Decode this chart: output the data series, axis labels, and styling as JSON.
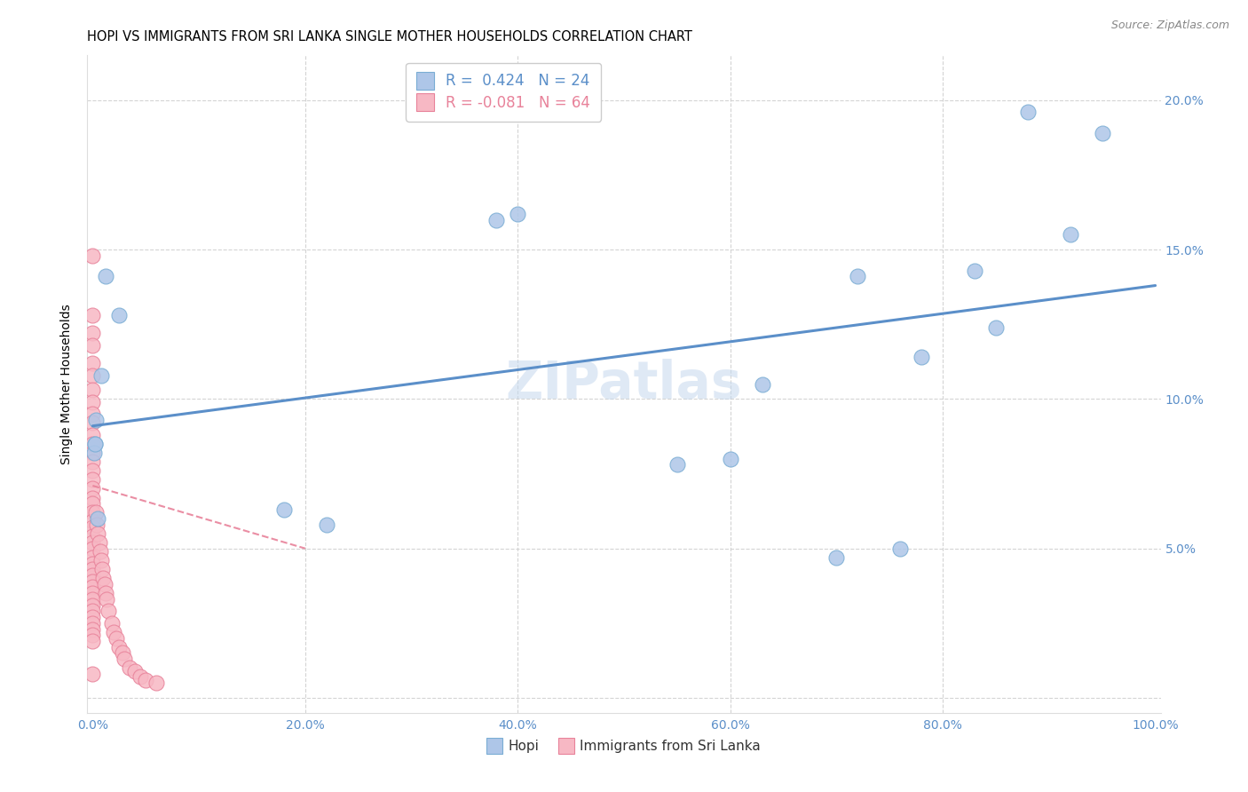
{
  "title": "HOPI VS IMMIGRANTS FROM SRI LANKA SINGLE MOTHER HOUSEHOLDS CORRELATION CHART",
  "source": "Source: ZipAtlas.com",
  "xlabel_hopi": "Hopi",
  "xlabel_srilanka": "Immigrants from Sri Lanka",
  "ylabel": "Single Mother Households",
  "watermark": "ZIPatlas",
  "hopi_R": 0.424,
  "hopi_N": 24,
  "srilanka_R": -0.081,
  "srilanka_N": 64,
  "hopi_color": "#aec6e8",
  "hopi_edge_color": "#7aadd4",
  "hopi_line_color": "#5b8fc9",
  "srilanka_color": "#f7b8c4",
  "srilanka_edge_color": "#e8829a",
  "srilanka_line_color": "#e8829a",
  "hopi_x": [
    0.003,
    0.012,
    0.025,
    0.008,
    0.002,
    0.005,
    0.001,
    0.002,
    0.38,
    0.18,
    0.22,
    0.6,
    0.78,
    0.92,
    0.83,
    0.72,
    0.88,
    0.95,
    0.85,
    0.7,
    0.55,
    0.4,
    0.63,
    0.76
  ],
  "hopi_y": [
    0.093,
    0.141,
    0.128,
    0.108,
    0.085,
    0.06,
    0.082,
    0.085,
    0.16,
    0.063,
    0.058,
    0.08,
    0.114,
    0.155,
    0.143,
    0.141,
    0.196,
    0.189,
    0.124,
    0.047,
    0.078,
    0.162,
    0.105,
    0.05
  ],
  "srilanka_x": [
    0.0,
    0.0,
    0.0,
    0.0,
    0.0,
    0.0,
    0.0,
    0.0,
    0.0,
    0.0,
    0.0,
    0.0,
    0.0,
    0.0,
    0.0,
    0.0,
    0.0,
    0.0,
    0.0,
    0.0,
    0.0,
    0.0,
    0.0,
    0.0,
    0.0,
    0.0,
    0.0,
    0.0,
    0.0,
    0.0,
    0.0,
    0.0,
    0.0,
    0.0,
    0.0,
    0.0,
    0.0,
    0.0,
    0.0,
    0.0,
    0.0,
    0.003,
    0.004,
    0.005,
    0.006,
    0.007,
    0.008,
    0.009,
    0.01,
    0.011,
    0.012,
    0.013,
    0.015,
    0.018,
    0.02,
    0.022,
    0.025,
    0.028,
    0.03,
    0.035,
    0.04,
    0.045,
    0.05,
    0.06
  ],
  "srilanka_y": [
    0.148,
    0.128,
    0.122,
    0.118,
    0.112,
    0.108,
    0.103,
    0.099,
    0.095,
    0.092,
    0.088,
    0.085,
    0.082,
    0.079,
    0.076,
    0.073,
    0.07,
    0.067,
    0.065,
    0.062,
    0.059,
    0.057,
    0.054,
    0.052,
    0.05,
    0.047,
    0.045,
    0.043,
    0.041,
    0.039,
    0.037,
    0.035,
    0.033,
    0.031,
    0.029,
    0.027,
    0.025,
    0.023,
    0.021,
    0.019,
    0.008,
    0.062,
    0.058,
    0.055,
    0.052,
    0.049,
    0.046,
    0.043,
    0.04,
    0.038,
    0.035,
    0.033,
    0.029,
    0.025,
    0.022,
    0.02,
    0.017,
    0.015,
    0.013,
    0.01,
    0.009,
    0.007,
    0.006,
    0.005
  ],
  "hopi_line_x0": 0.0,
  "hopi_line_x1": 1.0,
  "hopi_line_y0": 0.091,
  "hopi_line_y1": 0.138,
  "srilanka_line_x0": 0.0,
  "srilanka_line_x1": 0.2,
  "srilanka_line_y0": 0.071,
  "srilanka_line_y1": 0.05,
  "xlim": [
    -0.005,
    1.005
  ],
  "ylim": [
    -0.005,
    0.215
  ],
  "xticks": [
    0.0,
    0.2,
    0.4,
    0.6,
    0.8,
    1.0
  ],
  "xtick_labels": [
    "0.0%",
    "20.0%",
    "40.0%",
    "60.0%",
    "80.0%",
    "100.0%"
  ],
  "yticks": [
    0.0,
    0.05,
    0.1,
    0.15,
    0.2
  ],
  "ytick_labels": [
    "",
    "5.0%",
    "10.0%",
    "15.0%",
    "20.0%"
  ],
  "grid_color": "#d0d0d0",
  "background_color": "#ffffff",
  "title_fontsize": 10.5,
  "axis_label_fontsize": 10,
  "tick_fontsize": 10,
  "legend_fontsize": 12
}
